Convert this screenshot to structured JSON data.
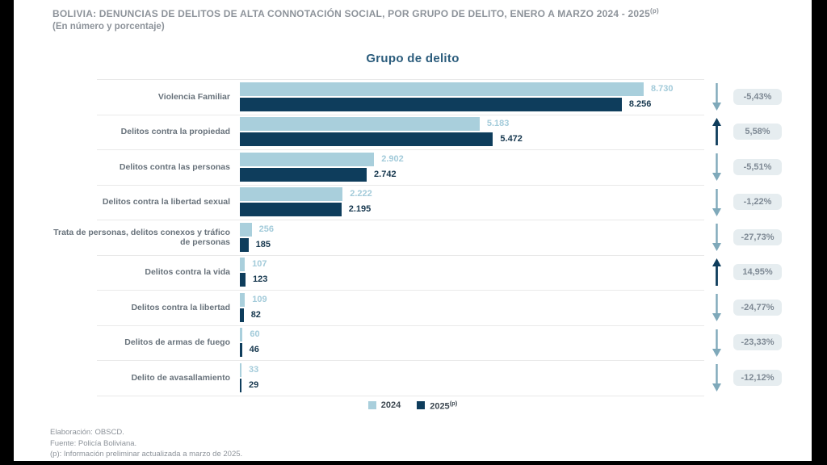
{
  "header": {
    "title": "BOLIVIA: DENUNCIAS DE DELITOS DE ALTA CONNOTACIÓN SOCIAL, POR GRUPO DE DELITO, ENERO A MARZO 2024 - 2025",
    "title_sup": "(p)",
    "subtitle": "(En número y porcentaje)"
  },
  "chart_data": {
    "type": "bar",
    "orientation": "horizontal",
    "title": "Grupo de delito",
    "categories": [
      "Violencia Familiar",
      "Delitos contra la propiedad",
      "Delitos contra las personas",
      "Delitos contra la libertad sexual",
      "Trata de personas, delitos conexos y tráfico de personas",
      "Delitos contra la vida",
      "Delitos contra la libertad",
      "Delitos de armas de fuego",
      "Delito de avasallamiento"
    ],
    "series": [
      {
        "name": "2024",
        "color": "#a9cfdc",
        "values": [
          8730,
          5183,
          2902,
          2222,
          256,
          107,
          109,
          60,
          33
        ],
        "labels": [
          "8.730",
          "5.183",
          "2.902",
          "2.222",
          "256",
          "107",
          "109",
          "60",
          "33"
        ]
      },
      {
        "name": "2025(p)",
        "color": "#0e3d5c",
        "values": [
          8256,
          5472,
          2742,
          2195,
          185,
          123,
          82,
          46,
          29
        ],
        "labels": [
          "8.256",
          "5.472",
          "2.742",
          "2.195",
          "185",
          "123",
          "82",
          "46",
          "29"
        ]
      }
    ],
    "change_pct": [
      "-5,43%",
      "5,58%",
      "-5,51%",
      "-1,22%",
      "-27,73%",
      "14,95%",
      "-24,77%",
      "-23,33%",
      "-12,12%"
    ],
    "change_direction": [
      "down",
      "up",
      "down",
      "down",
      "down",
      "up",
      "down",
      "down",
      "down"
    ],
    "xlim": [
      0,
      8730
    ],
    "grid": "row-separators",
    "legend_position": "bottom-center"
  },
  "legend": {
    "item1": "2024",
    "item2": "2025",
    "item2_sup": "(p)"
  },
  "footer": {
    "line1": "Elaboración: OBSCD.",
    "line2": "Fuente: Policía Boliviana.",
    "line3": "(p): Información preliminar actualizada a marzo de 2025."
  },
  "colors": {
    "bar_2024": "#a9cfdc",
    "bar_2025": "#0e3d5c",
    "up_arrow": "#0e3d5c",
    "down_arrow": "#7fa9ba",
    "badge_bg": "#e6edf0",
    "badge_text": "#7e8994",
    "chart_title": "#2b5c7c",
    "header_text": "#8d939a"
  }
}
